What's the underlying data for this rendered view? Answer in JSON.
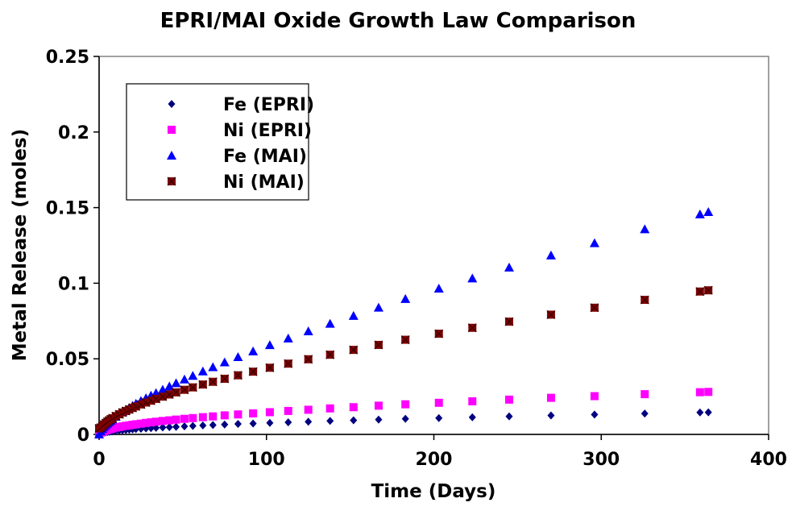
{
  "chart_data": {
    "type": "scatter",
    "title": "EPRI/MAI Oxide Growth Law Comparison",
    "xlabel": "Time (Days)",
    "ylabel": "Metal Release (moles)",
    "xlim": [
      0,
      400
    ],
    "ylim": [
      0,
      0.25
    ],
    "x_ticks": [
      "0",
      "100",
      "200",
      "300",
      "400"
    ],
    "y_ticks": [
      "0",
      "0.05",
      "0.1",
      "0.15",
      "0.2",
      "0.25"
    ],
    "grid": false,
    "legend_position": "top-left",
    "x": [
      0,
      1,
      2,
      3,
      4,
      5,
      6,
      7,
      8,
      10,
      12,
      14,
      16,
      18,
      20,
      22,
      25,
      28,
      31,
      34,
      38,
      42,
      46,
      51,
      56,
      62,
      68,
      75,
      83,
      92,
      102,
      113,
      125,
      138,
      152,
      167,
      183,
      203,
      223,
      245,
      270,
      296,
      326,
      359,
      364
    ],
    "series": [
      {
        "name": "Fe (EPRI)",
        "marker": "diamond",
        "color": "#000080",
        "values": [
          0.0,
          0.0006,
          0.0009,
          0.0012,
          0.0014,
          0.0016,
          0.0017,
          0.0019,
          0.002,
          0.0023,
          0.0025,
          0.0027,
          0.0029,
          0.0031,
          0.0033,
          0.0035,
          0.0037,
          0.0039,
          0.0041,
          0.0043,
          0.0046,
          0.0048,
          0.005,
          0.0053,
          0.0056,
          0.0059,
          0.0062,
          0.0065,
          0.0069,
          0.0072,
          0.0076,
          0.008,
          0.0084,
          0.0089,
          0.0093,
          0.0098,
          0.0103,
          0.0108,
          0.0113,
          0.0119,
          0.0125,
          0.0131,
          0.0138,
          0.0145,
          0.0146
        ]
      },
      {
        "name": "Ni (EPRI)",
        "marker": "square",
        "color": "#ff00ff",
        "values": [
          0.0,
          0.0012,
          0.0018,
          0.0023,
          0.0027,
          0.0031,
          0.0034,
          0.0037,
          0.004,
          0.0045,
          0.0049,
          0.0053,
          0.0057,
          0.006,
          0.0064,
          0.0067,
          0.0071,
          0.0076,
          0.008,
          0.0084,
          0.0089,
          0.0093,
          0.0098,
          0.0103,
          0.0108,
          0.0114,
          0.0119,
          0.0126,
          0.0132,
          0.0139,
          0.0147,
          0.0155,
          0.0163,
          0.0172,
          0.018,
          0.019,
          0.0199,
          0.0209,
          0.0219,
          0.023,
          0.0242,
          0.0253,
          0.0266,
          0.0279,
          0.0281
        ]
      },
      {
        "name": "Fe (MAI)",
        "marker": "triangle",
        "color": "#0000ff",
        "values": [
          0.0,
          0.0022,
          0.0037,
          0.005,
          0.0061,
          0.0072,
          0.0082,
          0.0091,
          0.01,
          0.0117,
          0.0133,
          0.0148,
          0.0162,
          0.0176,
          0.019,
          0.0203,
          0.0222,
          0.024,
          0.0257,
          0.0274,
          0.0296,
          0.0318,
          0.0339,
          0.0364,
          0.0388,
          0.0417,
          0.0445,
          0.0477,
          0.0512,
          0.055,
          0.0591,
          0.0635,
          0.0682,
          0.0732,
          0.0784,
          0.0839,
          0.0896,
          0.0965,
          0.1032,
          0.1104,
          0.1184,
          0.1265,
          0.1357,
          0.1456,
          0.1471
        ]
      },
      {
        "name": "Ni (MAI)",
        "marker": "square-x",
        "color": "#800000",
        "values": [
          0.004,
          0.0045,
          0.0055,
          0.0065,
          0.0075,
          0.0084,
          0.0092,
          0.01,
          0.0107,
          0.0121,
          0.0133,
          0.0145,
          0.0155,
          0.0165,
          0.0175,
          0.0185,
          0.0198,
          0.0211,
          0.0223,
          0.0235,
          0.025,
          0.0264,
          0.0278,
          0.0295,
          0.0311,
          0.033,
          0.0348,
          0.0368,
          0.0391,
          0.0415,
          0.0441,
          0.0468,
          0.0497,
          0.0527,
          0.0559,
          0.0592,
          0.0626,
          0.0666,
          0.0705,
          0.0746,
          0.0792,
          0.0838,
          0.089,
          0.0945,
          0.0953
        ]
      }
    ]
  }
}
